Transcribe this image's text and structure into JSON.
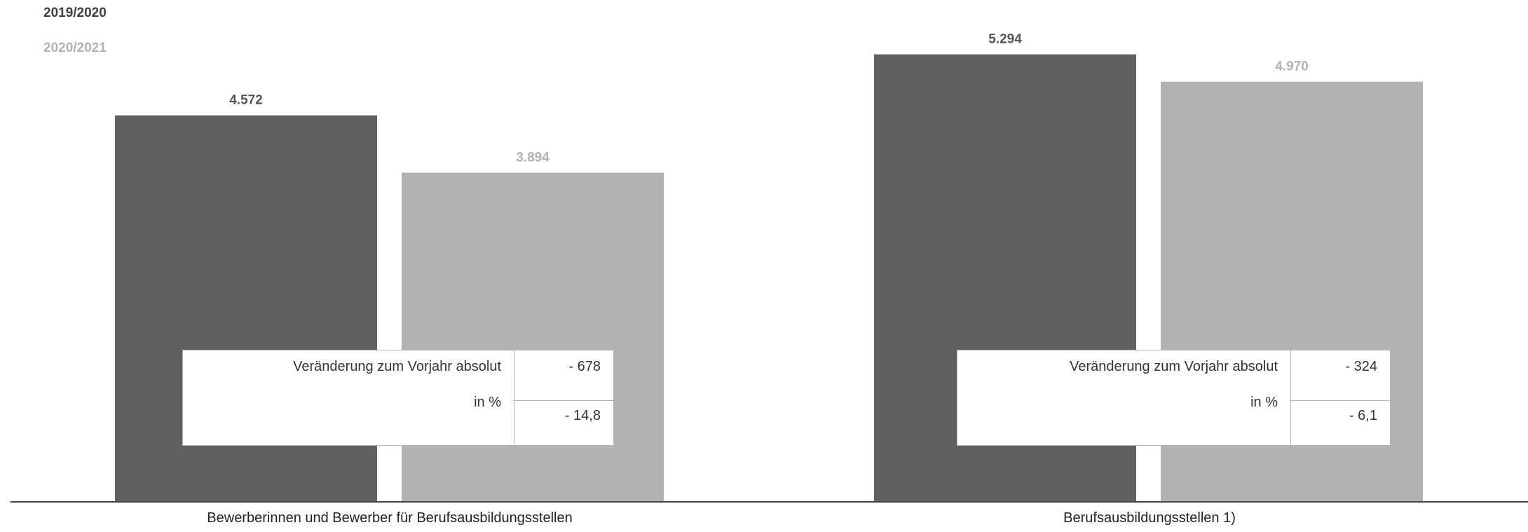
{
  "chart_data": {
    "type": "bar",
    "categories": [
      "Bewerberinnen und Bewerber für Berufsausbildungsstellen",
      "Berufsausbildungsstellen 1)"
    ],
    "series": [
      {
        "name": "2019/2020",
        "values": [
          4572,
          5294
        ],
        "labels": [
          "4.572",
          "5.294"
        ],
        "color": "#606060"
      },
      {
        "name": "2020/2021",
        "values": [
          3894,
          4970
        ],
        "labels": [
          "3.894",
          "4.970"
        ],
        "color": "#b2b2b2"
      }
    ],
    "ylim": [
      0,
      5400
    ],
    "grid": false,
    "legend_placement": "top-left",
    "change_tables": [
      {
        "label_abs": "Veränderung zum Vorjahr absolut",
        "label_pct": "in %",
        "abs": "- 678",
        "pct": "- 14,8"
      },
      {
        "label_abs": "Veränderung zum Vorjahr absolut",
        "label_pct": "in %",
        "abs": "- 324",
        "pct": "- 6,1"
      }
    ]
  }
}
